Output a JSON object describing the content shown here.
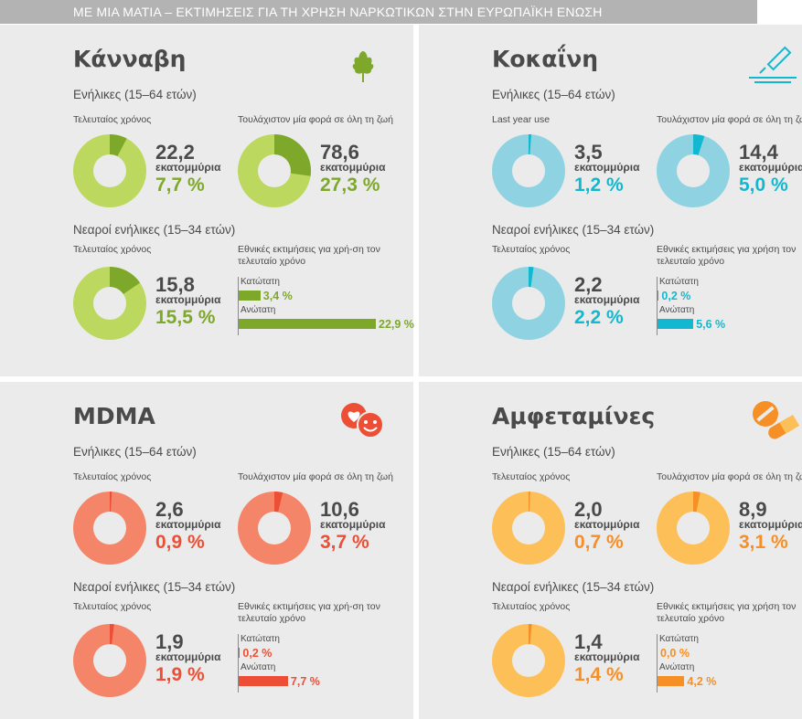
{
  "header": {
    "title": "ΜΕ ΜΙΑ ΜΑΤΙΑ – ΕΚΤΙΜΗΣΕΙΣ ΓΙΑ ΤΗ ΧΡΗΣΗ ΝΑΡΚΩΤΙΚΩΝ ΣΤΗΝ ΕΥΡΩΠΑΪΚΗ ΕΝΩΣΗ"
  },
  "colors": {
    "background": "#ebebeb",
    "text": "#4a4a4a",
    "cannabis_light": "#bcd85f",
    "cannabis_dark": "#7ea82a",
    "cocaine_light": "#8fd3e2",
    "cocaine_dark": "#12b8cf",
    "mdma_light": "#f58569",
    "mdma_dark": "#ec4f35",
    "amph_light": "#fdbf58",
    "amph_dark": "#f68f26"
  },
  "panels": [
    {
      "name": "Κάνναβη",
      "icon": "cannabis-leaf-icon",
      "adults_group": "Ενήλικες (15–64 ετών)",
      "young_group": "Νεαροί ενήλικες (15–34 ετών)",
      "adults": [
        {
          "label": "Τελευταίος χρόνος",
          "count": "22,2",
          "unit": "εκατομμύρια",
          "percent": "7,7 %",
          "share": 7.7
        },
        {
          "label": "Τουλάχιστον μία φορά σε όλη τη ζωή",
          "count": "78,6",
          "unit": "εκατομμύρια",
          "percent": "27,3 %",
          "share": 27.3
        }
      ],
      "young": {
        "label": "Τελευταίος χρόνος",
        "count": "15,8",
        "unit": "εκατομμύρια",
        "percent": "15,5 %",
        "share": 15.5
      },
      "range": {
        "title": "Εθνικές εκτιμήσεις για χρή-ση τον τελευταίο χρόνο",
        "low_label": "Κατώτατη",
        "low": "3,4 %",
        "low_value": 3.4,
        "high_label": "Ανώτατη",
        "high": "22,9 %",
        "high_value": 22.9
      }
    },
    {
      "name": "Κοκαΐνη",
      "icon": "cocaine-line-icon",
      "adults_group": "Ενήλικες (15–64 ετών)",
      "young_group": "Νεαροί ενήλικες (15–34 ετών)",
      "adults": [
        {
          "label": "Last year use",
          "count": "3,5",
          "unit": "εκατομμύρια",
          "percent": "1,2 %",
          "share": 1.2
        },
        {
          "label": "Τουλάχιστον μία φορά σε όλη τη ζωή",
          "count": "14,4",
          "unit": "εκατομμύρια",
          "percent": "5,0 %",
          "share": 5.0
        }
      ],
      "young": {
        "label": "Τελευταίος χρόνος",
        "count": "2,2",
        "unit": "εκατομμύρια",
        "percent": "2,2 %",
        "share": 2.2
      },
      "range": {
        "title": "Εθνικές εκτιμήσεις για χρήση τον τελευταίο χρόνο",
        "low_label": "Κατώτατη",
        "low": "0,2 %",
        "low_value": 0.2,
        "high_label": "Ανώτατη",
        "high": "5,6 %",
        "high_value": 5.6
      }
    },
    {
      "name": "MDMA",
      "icon": "hearts-smiley-icon",
      "adults_group": "Ενήλικες (15–64 ετών)",
      "young_group": "Νεαροί ενήλικες (15–34 ετών)",
      "adults": [
        {
          "label": "Τελευταίος χρόνος",
          "count": "2,6",
          "unit": "εκατομμύρια",
          "percent": "0,9 %",
          "share": 0.9
        },
        {
          "label": "Τουλάχιστον μία φορά σε όλη τη ζωή",
          "count": "10,6",
          "unit": "εκατομμύρια",
          "percent": "3,7 %",
          "share": 3.7
        }
      ],
      "young": {
        "label": "Τελευταίος χρόνος",
        "count": "1,9",
        "unit": "εκατομμύρια",
        "percent": "1,9 %",
        "share": 1.9
      },
      "range": {
        "title": "Εθνικές εκτιμήσεις για χρή-ση τον τελευταίο χρόνο",
        "low_label": "Κατώτατη",
        "low": "0,2 %",
        "low_value": 0.2,
        "high_label": "Ανώτατη",
        "high": "7,7 %",
        "high_value": 7.7
      }
    },
    {
      "name": "Αμφεταμίνες",
      "icon": "pills-icon",
      "adults_group": "Ενήλικες (15–64 ετών)",
      "young_group": "Νεαροί ενήλικες (15–34 ετών)",
      "adults": [
        {
          "label": "Τελευταίος χρόνος",
          "count": "2,0",
          "unit": "εκατομμύρια",
          "percent": "0,7 %",
          "share": 0.7
        },
        {
          "label": "Τουλάχιστον μία φορά σε όλη τη ζωή",
          "count": "8,9",
          "unit": "εκατομμύρια",
          "percent": "3,1 %",
          "share": 3.1
        }
      ],
      "young": {
        "label": "Τελευταίος χρόνος",
        "count": "1,4",
        "unit": "εκατομμύρια",
        "percent": "1,4 %",
        "share": 1.4
      },
      "range": {
        "title": "Εθνικές εκτιμήσεις για χρήση τον τελευταίο χρόνο",
        "low_label": "Κατώτατη",
        "low": "0,0 %",
        "low_value": 0.0,
        "high_label": "Ανώτατη",
        "high": "4,2 %",
        "high_value": 4.2
      }
    }
  ],
  "chart_data": {
    "type": "pie",
    "title": "ΜΕ ΜΙΑ ΜΑΤΙΑ – ΕΚΤΙΜΗΣΕΙΣ ΓΙΑ ΤΗ ΧΡΗΣΗ ΝΑΡΚΩΤΙΚΩΝ ΣΤΗΝ ΕΥΡΩΠΑΪΚΗ ΕΝΩΣΗ",
    "unit": "%",
    "donuts": [
      {
        "drug": "Κάνναβη",
        "group": "Ενήλικες (15–64 ετών)",
        "measure": "Τελευταίος χρόνος",
        "value": 7.7,
        "count_millions": 22.2
      },
      {
        "drug": "Κάνναβη",
        "group": "Ενήλικες (15–64 ετών)",
        "measure": "Τουλάχιστον μία φορά σε όλη τη ζωή",
        "value": 27.3,
        "count_millions": 78.6
      },
      {
        "drug": "Κάνναβη",
        "group": "Νεαροί ενήλικες (15–34 ετών)",
        "measure": "Τελευταίος χρόνος",
        "value": 15.5,
        "count_millions": 15.8
      },
      {
        "drug": "Κοκαΐνη",
        "group": "Ενήλικες (15–64 ετών)",
        "measure": "Last year use",
        "value": 1.2,
        "count_millions": 3.5
      },
      {
        "drug": "Κοκαΐνη",
        "group": "Ενήλικες (15–64 ετών)",
        "measure": "Τουλάχιστον μία φορά σε όλη τη ζωή",
        "value": 5.0,
        "count_millions": 14.4
      },
      {
        "drug": "Κοκαΐνη",
        "group": "Νεαροί ενήλικες (15–34 ετών)",
        "measure": "Τελευταίος χρόνος",
        "value": 2.2,
        "count_millions": 2.2
      },
      {
        "drug": "MDMA",
        "group": "Ενήλικες (15–64 ετών)",
        "measure": "Τελευταίος χρόνος",
        "value": 0.9,
        "count_millions": 2.6
      },
      {
        "drug": "MDMA",
        "group": "Ενήλικες (15–64 ετών)",
        "measure": "Τουλάχιστον μία φορά σε όλη τη ζωή",
        "value": 3.7,
        "count_millions": 10.6
      },
      {
        "drug": "MDMA",
        "group": "Νεαροί ενήλικες (15–34 ετών)",
        "measure": "Τελευταίος χρόνος",
        "value": 1.9,
        "count_millions": 1.9
      },
      {
        "drug": "Αμφεταμίνες",
        "group": "Ενήλικες (15–64 ετών)",
        "measure": "Τελευταίος χρόνος",
        "value": 0.7,
        "count_millions": 2.0
      },
      {
        "drug": "Αμφεταμίνες",
        "group": "Ενήλικες (15–64 ετών)",
        "measure": "Τουλάχιστον μία φορά σε όλη τη ζωή",
        "value": 3.1,
        "count_millions": 8.9
      },
      {
        "drug": "Αμφεταμίνες",
        "group": "Νεαροί ενήλικες (15–34 ετών)",
        "measure": "Τελευταίος χρόνος",
        "value": 1.4,
        "count_millions": 1.4
      }
    ],
    "ranges": [
      {
        "drug": "Κάνναβη",
        "low": 3.4,
        "high": 22.9
      },
      {
        "drug": "Κοκαΐνη",
        "low": 0.2,
        "high": 5.6
      },
      {
        "drug": "MDMA",
        "low": 0.2,
        "high": 7.7
      },
      {
        "drug": "Αμφεταμίνες",
        "low": 0.0,
        "high": 4.2
      }
    ]
  }
}
